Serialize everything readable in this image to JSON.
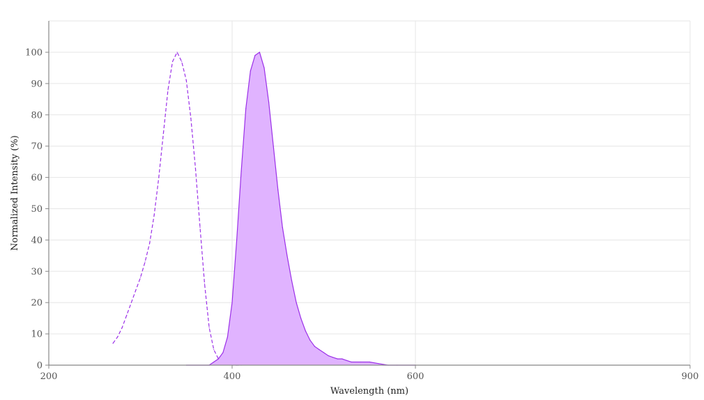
{
  "chart_data": {
    "type": "area",
    "xlabel": "Wavelength (nm)",
    "ylabel": "Normalized Intensity (%)",
    "xlim": [
      200,
      900
    ],
    "ylim": [
      0,
      110
    ],
    "x_tick_labels": [
      {
        "value": 200,
        "label": "200"
      },
      {
        "value": 400,
        "label": "400"
      },
      {
        "value": 600,
        "label": "600"
      },
      {
        "value": 900,
        "label": "900"
      }
    ],
    "y_tick_labels": [
      {
        "value": 0,
        "label": "0"
      },
      {
        "value": 10,
        "label": "10"
      },
      {
        "value": 20,
        "label": "20"
      },
      {
        "value": 30,
        "label": "30"
      },
      {
        "value": 40,
        "label": "40"
      },
      {
        "value": 50,
        "label": "50"
      },
      {
        "value": 60,
        "label": "60"
      },
      {
        "value": 70,
        "label": "70"
      },
      {
        "value": 80,
        "label": "80"
      },
      {
        "value": 90,
        "label": "90"
      },
      {
        "value": 100,
        "label": "100"
      }
    ],
    "grid": true,
    "series": [
      {
        "style": "dashed line",
        "color": "#9b30e8",
        "x": [
          270,
          275,
          280,
          285,
          290,
          295,
          300,
          305,
          310,
          315,
          320,
          325,
          330,
          335,
          340,
          345,
          350,
          355,
          360,
          365,
          370,
          375,
          380,
          385,
          390,
          395,
          400,
          405,
          410
        ],
        "y": [
          7,
          9,
          12,
          16,
          20,
          24,
          28,
          33,
          39,
          48,
          60,
          74,
          88,
          97,
          100,
          97,
          91,
          79,
          63,
          44,
          26,
          12,
          5,
          2,
          1,
          0.5,
          0,
          0,
          0
        ]
      },
      {
        "style": "filled area",
        "color": "#9b30e8",
        "fill": "#e0b3ff",
        "x": [
          350,
          375,
          380,
          385,
          390,
          395,
          400,
          405,
          410,
          415,
          420,
          425,
          430,
          435,
          440,
          445,
          450,
          455,
          460,
          465,
          470,
          475,
          480,
          485,
          490,
          495,
          500,
          505,
          510,
          515,
          520,
          525,
          530,
          540,
          550,
          560,
          570,
          580,
          600
        ],
        "y": [
          0,
          0,
          1,
          2,
          4,
          9,
          20,
          40,
          62,
          82,
          94,
          99,
          100,
          95,
          84,
          70,
          56,
          44,
          35,
          27,
          20,
          15,
          11,
          8,
          6,
          5,
          4,
          3,
          2.5,
          2,
          2,
          1.5,
          1,
          1,
          1,
          0.5,
          0,
          0,
          0
        ]
      }
    ]
  }
}
